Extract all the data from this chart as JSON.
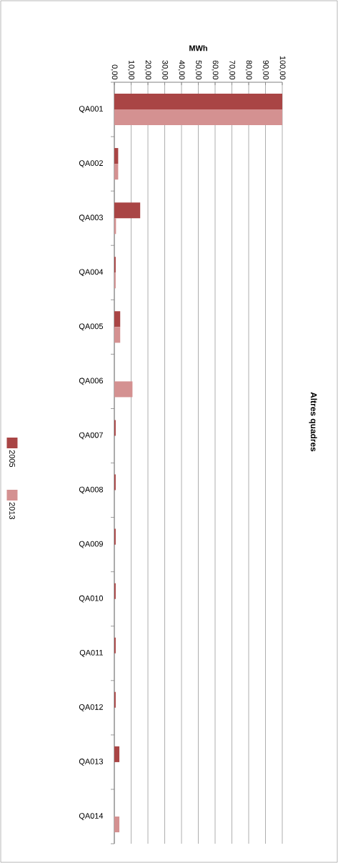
{
  "chart_data": {
    "type": "bar",
    "orientation": "horizontal",
    "title": "Altres quadres",
    "xlabel": "MWh",
    "categories": [
      "QA001",
      "QA002",
      "QA003",
      "QA004",
      "QA005",
      "QA006",
      "QA007",
      "QA008",
      "QA009",
      "QA010",
      "QA011",
      "QA012",
      "QA013",
      "QA014"
    ],
    "series": [
      {
        "name": "2005",
        "color": "#a94545",
        "values": [
          100,
          2.3,
          15.4,
          0.8,
          3.5,
          0,
          0.8,
          0.8,
          0.8,
          0.8,
          0.8,
          0.8,
          3.0,
          0
        ]
      },
      {
        "name": "2013",
        "color": "#d49191",
        "values": [
          100,
          2.3,
          1.0,
          0.8,
          3.5,
          10.8,
          0,
          0,
          0,
          0,
          0,
          0,
          0,
          3.0
        ]
      }
    ],
    "xlim": [
      0,
      100
    ],
    "xticks": [
      {
        "value": 0,
        "label": "0,00"
      },
      {
        "value": 10,
        "label": "10,00"
      },
      {
        "value": 20,
        "label": "20,00"
      },
      {
        "value": 30,
        "label": "30,00"
      },
      {
        "value": 40,
        "label": "40,00"
      },
      {
        "value": 50,
        "label": "50,00"
      },
      {
        "value": 60,
        "label": "60,00"
      },
      {
        "value": 70,
        "label": "70,00"
      },
      {
        "value": 80,
        "label": "80,00"
      },
      {
        "value": 90,
        "label": "90,00"
      },
      {
        "value": 100,
        "label": "100,00"
      }
    ],
    "grid": "x",
    "legend": "left"
  }
}
